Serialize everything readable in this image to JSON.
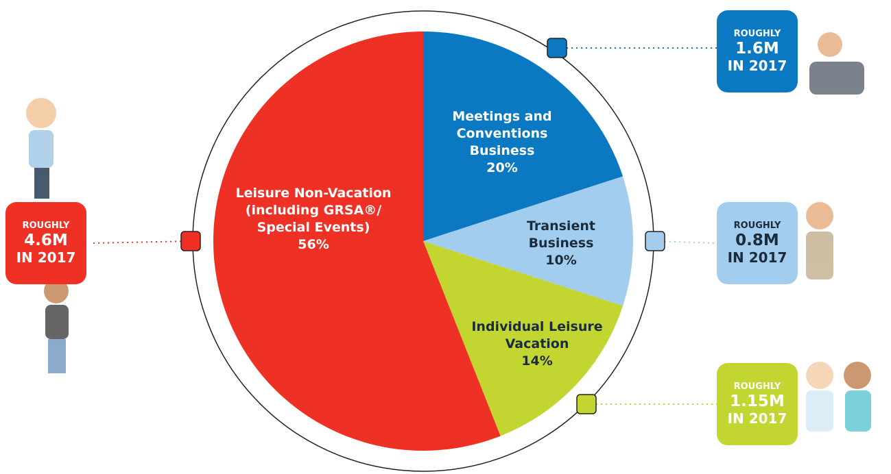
{
  "chart_data": {
    "type": "pie",
    "categories": [
      "Meetings and Conventions Business",
      "Transient Business",
      "Individual Leisure Vacation",
      "Leisure Non-Vacation (including GRSA®/ Special Events)"
    ],
    "values": [
      20,
      10,
      14,
      56
    ],
    "value_labels": [
      "20%",
      "10%",
      "14%",
      "56%"
    ],
    "colors": [
      "#0b78c2",
      "#a3cdee",
      "#c3d530",
      "#ee3124"
    ],
    "callouts": [
      {
        "prefix": "ROUGHLY",
        "amount": "1.6M",
        "suffix": "IN 2017"
      },
      {
        "prefix": "ROUGHLY",
        "amount": "0.8M",
        "suffix": "IN 2017"
      },
      {
        "prefix": "ROUGHLY",
        "amount": "1.15M",
        "suffix": "IN 2017"
      },
      {
        "prefix": "ROUGHLY",
        "amount": "4.6M",
        "suffix": "IN 2017"
      }
    ]
  }
}
